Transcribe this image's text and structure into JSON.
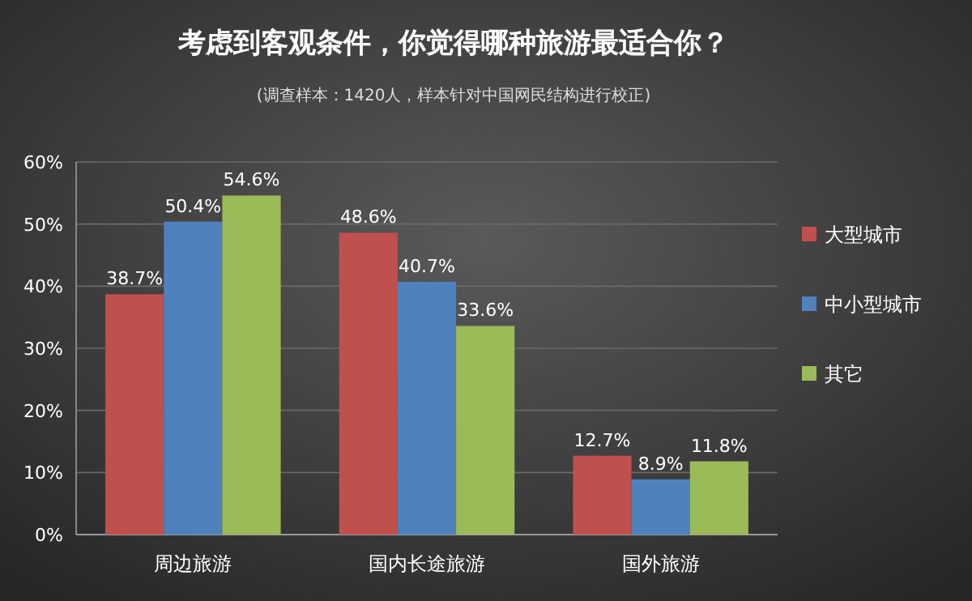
{
  "chart_data": {
    "type": "bar",
    "title": "考虑到客观条件，你觉得哪种旅游最适合你？",
    "subtitle": "(调查样本：1420人，样本针对中国网民结构进行校正)",
    "categories": [
      "周边旅游",
      "国内长途旅游",
      "国外旅游"
    ],
    "series": [
      {
        "name": "大型城市",
        "color": "#c0504d",
        "values": [
          38.7,
          48.6,
          12.7
        ],
        "value_labels": [
          "38.7%",
          "48.6%",
          "12.7%"
        ]
      },
      {
        "name": "中小型城市",
        "color": "#4f81bd",
        "values": [
          50.4,
          40.7,
          8.9
        ],
        "value_labels": [
          "50.4%",
          "40.7%",
          "8.9%"
        ]
      },
      {
        "name": "其它",
        "color": "#9bbb59",
        "values": [
          54.6,
          33.6,
          11.8
        ],
        "value_labels": [
          "54.6%",
          "33.6%",
          "11.8%"
        ]
      }
    ],
    "ylim": [
      0,
      60
    ],
    "yticks": [
      {
        "value": 0,
        "label": "0%"
      },
      {
        "value": 10,
        "label": "10%"
      },
      {
        "value": 20,
        "label": "20%"
      },
      {
        "value": 30,
        "label": "30%"
      },
      {
        "value": 40,
        "label": "40%"
      },
      {
        "value": 50,
        "label": "50%"
      },
      {
        "value": 60,
        "label": "60%"
      }
    ],
    "grid": "y",
    "legend": "right"
  }
}
